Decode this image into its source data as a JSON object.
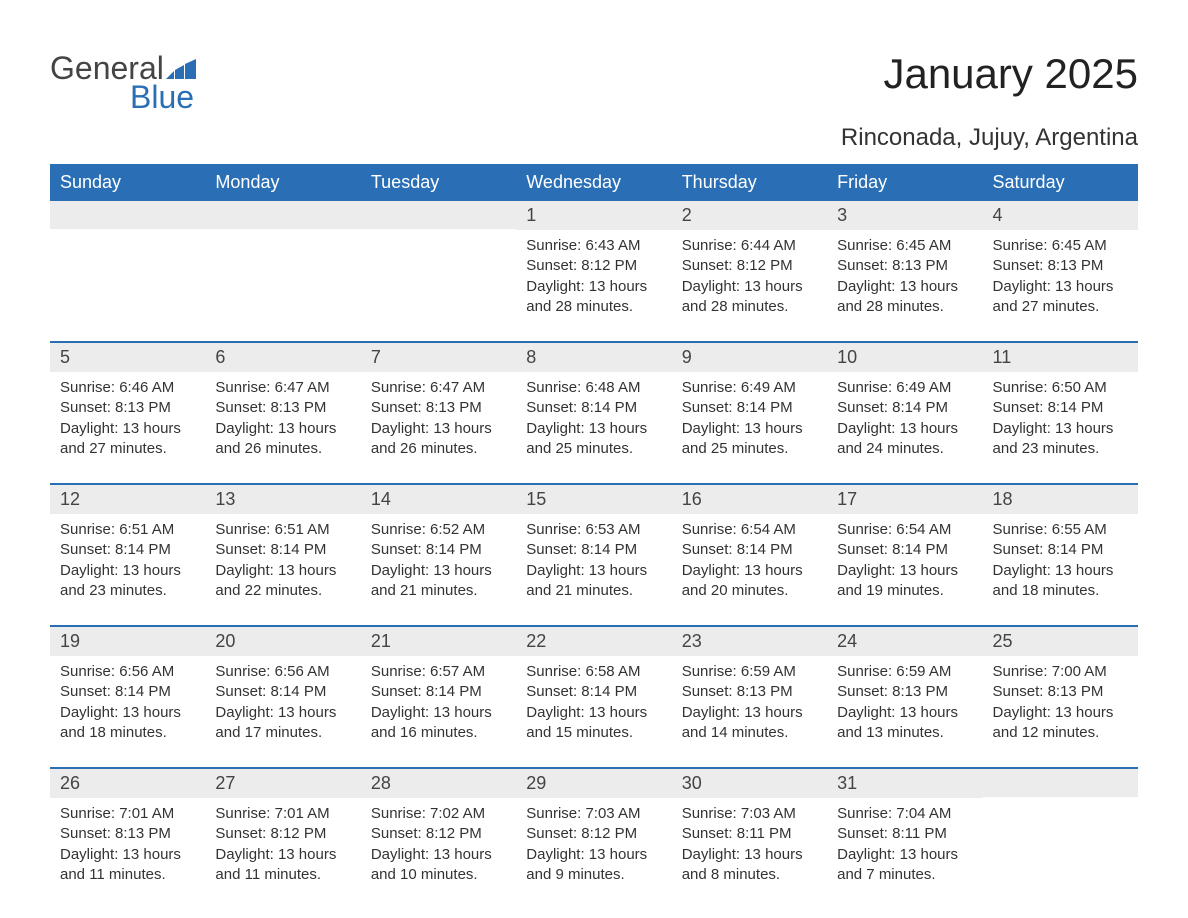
{
  "brand": {
    "general": "General",
    "blue": "Blue",
    "logo_color": "#2a6fb5"
  },
  "title": "January 2025",
  "location": "Rinconada, Jujuy, Argentina",
  "colors": {
    "header_bg": "#2a6fb5",
    "header_text": "#ffffff",
    "daynum_bg": "#ececec",
    "text": "#333333",
    "week_border": "#2a6fb5"
  },
  "day_headers": [
    "Sunday",
    "Monday",
    "Tuesday",
    "Wednesday",
    "Thursday",
    "Friday",
    "Saturday"
  ],
  "weeks": [
    [
      {
        "day": "",
        "sunrise": "",
        "sunset": "",
        "daylight": ""
      },
      {
        "day": "",
        "sunrise": "",
        "sunset": "",
        "daylight": ""
      },
      {
        "day": "",
        "sunrise": "",
        "sunset": "",
        "daylight": ""
      },
      {
        "day": "1",
        "sunrise": "Sunrise: 6:43 AM",
        "sunset": "Sunset: 8:12 PM",
        "daylight": "Daylight: 13 hours and 28 minutes."
      },
      {
        "day": "2",
        "sunrise": "Sunrise: 6:44 AM",
        "sunset": "Sunset: 8:12 PM",
        "daylight": "Daylight: 13 hours and 28 minutes."
      },
      {
        "day": "3",
        "sunrise": "Sunrise: 6:45 AM",
        "sunset": "Sunset: 8:13 PM",
        "daylight": "Daylight: 13 hours and 28 minutes."
      },
      {
        "day": "4",
        "sunrise": "Sunrise: 6:45 AM",
        "sunset": "Sunset: 8:13 PM",
        "daylight": "Daylight: 13 hours and 27 minutes."
      }
    ],
    [
      {
        "day": "5",
        "sunrise": "Sunrise: 6:46 AM",
        "sunset": "Sunset: 8:13 PM",
        "daylight": "Daylight: 13 hours and 27 minutes."
      },
      {
        "day": "6",
        "sunrise": "Sunrise: 6:47 AM",
        "sunset": "Sunset: 8:13 PM",
        "daylight": "Daylight: 13 hours and 26 minutes."
      },
      {
        "day": "7",
        "sunrise": "Sunrise: 6:47 AM",
        "sunset": "Sunset: 8:13 PM",
        "daylight": "Daylight: 13 hours and 26 minutes."
      },
      {
        "day": "8",
        "sunrise": "Sunrise: 6:48 AM",
        "sunset": "Sunset: 8:14 PM",
        "daylight": "Daylight: 13 hours and 25 minutes."
      },
      {
        "day": "9",
        "sunrise": "Sunrise: 6:49 AM",
        "sunset": "Sunset: 8:14 PM",
        "daylight": "Daylight: 13 hours and 25 minutes."
      },
      {
        "day": "10",
        "sunrise": "Sunrise: 6:49 AM",
        "sunset": "Sunset: 8:14 PM",
        "daylight": "Daylight: 13 hours and 24 minutes."
      },
      {
        "day": "11",
        "sunrise": "Sunrise: 6:50 AM",
        "sunset": "Sunset: 8:14 PM",
        "daylight": "Daylight: 13 hours and 23 minutes."
      }
    ],
    [
      {
        "day": "12",
        "sunrise": "Sunrise: 6:51 AM",
        "sunset": "Sunset: 8:14 PM",
        "daylight": "Daylight: 13 hours and 23 minutes."
      },
      {
        "day": "13",
        "sunrise": "Sunrise: 6:51 AM",
        "sunset": "Sunset: 8:14 PM",
        "daylight": "Daylight: 13 hours and 22 minutes."
      },
      {
        "day": "14",
        "sunrise": "Sunrise: 6:52 AM",
        "sunset": "Sunset: 8:14 PM",
        "daylight": "Daylight: 13 hours and 21 minutes."
      },
      {
        "day": "15",
        "sunrise": "Sunrise: 6:53 AM",
        "sunset": "Sunset: 8:14 PM",
        "daylight": "Daylight: 13 hours and 21 minutes."
      },
      {
        "day": "16",
        "sunrise": "Sunrise: 6:54 AM",
        "sunset": "Sunset: 8:14 PM",
        "daylight": "Daylight: 13 hours and 20 minutes."
      },
      {
        "day": "17",
        "sunrise": "Sunrise: 6:54 AM",
        "sunset": "Sunset: 8:14 PM",
        "daylight": "Daylight: 13 hours and 19 minutes."
      },
      {
        "day": "18",
        "sunrise": "Sunrise: 6:55 AM",
        "sunset": "Sunset: 8:14 PM",
        "daylight": "Daylight: 13 hours and 18 minutes."
      }
    ],
    [
      {
        "day": "19",
        "sunrise": "Sunrise: 6:56 AM",
        "sunset": "Sunset: 8:14 PM",
        "daylight": "Daylight: 13 hours and 18 minutes."
      },
      {
        "day": "20",
        "sunrise": "Sunrise: 6:56 AM",
        "sunset": "Sunset: 8:14 PM",
        "daylight": "Daylight: 13 hours and 17 minutes."
      },
      {
        "day": "21",
        "sunrise": "Sunrise: 6:57 AM",
        "sunset": "Sunset: 8:14 PM",
        "daylight": "Daylight: 13 hours and 16 minutes."
      },
      {
        "day": "22",
        "sunrise": "Sunrise: 6:58 AM",
        "sunset": "Sunset: 8:14 PM",
        "daylight": "Daylight: 13 hours and 15 minutes."
      },
      {
        "day": "23",
        "sunrise": "Sunrise: 6:59 AM",
        "sunset": "Sunset: 8:13 PM",
        "daylight": "Daylight: 13 hours and 14 minutes."
      },
      {
        "day": "24",
        "sunrise": "Sunrise: 6:59 AM",
        "sunset": "Sunset: 8:13 PM",
        "daylight": "Daylight: 13 hours and 13 minutes."
      },
      {
        "day": "25",
        "sunrise": "Sunrise: 7:00 AM",
        "sunset": "Sunset: 8:13 PM",
        "daylight": "Daylight: 13 hours and 12 minutes."
      }
    ],
    [
      {
        "day": "26",
        "sunrise": "Sunrise: 7:01 AM",
        "sunset": "Sunset: 8:13 PM",
        "daylight": "Daylight: 13 hours and 11 minutes."
      },
      {
        "day": "27",
        "sunrise": "Sunrise: 7:01 AM",
        "sunset": "Sunset: 8:12 PM",
        "daylight": "Daylight: 13 hours and 11 minutes."
      },
      {
        "day": "28",
        "sunrise": "Sunrise: 7:02 AM",
        "sunset": "Sunset: 8:12 PM",
        "daylight": "Daylight: 13 hours and 10 minutes."
      },
      {
        "day": "29",
        "sunrise": "Sunrise: 7:03 AM",
        "sunset": "Sunset: 8:12 PM",
        "daylight": "Daylight: 13 hours and 9 minutes."
      },
      {
        "day": "30",
        "sunrise": "Sunrise: 7:03 AM",
        "sunset": "Sunset: 8:11 PM",
        "daylight": "Daylight: 13 hours and 8 minutes."
      },
      {
        "day": "31",
        "sunrise": "Sunrise: 7:04 AM",
        "sunset": "Sunset: 8:11 PM",
        "daylight": "Daylight: 13 hours and 7 minutes."
      },
      {
        "day": "",
        "sunrise": "",
        "sunset": "",
        "daylight": ""
      }
    ]
  ]
}
